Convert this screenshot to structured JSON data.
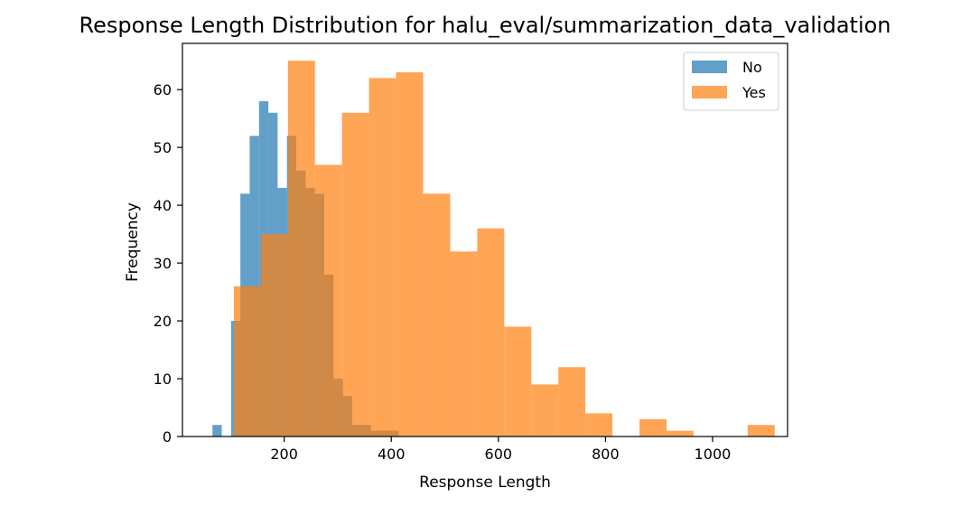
{
  "chart_data": {
    "type": "bar",
    "title": "Response Length Distribution for halu_eval/summarization_data_validation",
    "xlabel": "Response Length",
    "ylabel": "Frequency",
    "xlim": [
      10,
      1140
    ],
    "ylim": [
      0,
      68
    ],
    "xticks": [
      200,
      400,
      600,
      800,
      1000
    ],
    "yticks": [
      0,
      10,
      20,
      30,
      40,
      50,
      60
    ],
    "grid": false,
    "legend_position": "top-right",
    "series": [
      {
        "name": "No",
        "color": "#1f77b4",
        "opacity": 0.7,
        "bin_edges": [
          66,
          83.4,
          100.8,
          118.2,
          135.6,
          153,
          170.4,
          187.8,
          205.2,
          222.6,
          240,
          257.4,
          274.8,
          292.2,
          309.6,
          327,
          344.4,
          361.8,
          379.2,
          396.6,
          414
        ],
        "counts": [
          2,
          0,
          20,
          42,
          52,
          58,
          56,
          43,
          52,
          46,
          43,
          42,
          28,
          10,
          7,
          2,
          2,
          1,
          1,
          1
        ]
      },
      {
        "name": "Yes",
        "color": "#ff7f0e",
        "opacity": 0.7,
        "bin_edges": [
          106,
          156.5,
          207,
          257.5,
          308,
          358.5,
          409,
          459.5,
          510,
          560.5,
          611,
          661.5,
          712,
          762.5,
          813,
          863.5,
          914,
          964.5,
          1015,
          1065.5,
          1116
        ],
        "counts": [
          26,
          35,
          65,
          47,
          56,
          62,
          63,
          42,
          32,
          36,
          19,
          9,
          12,
          4,
          0,
          3,
          1,
          0,
          0,
          2
        ]
      }
    ]
  }
}
